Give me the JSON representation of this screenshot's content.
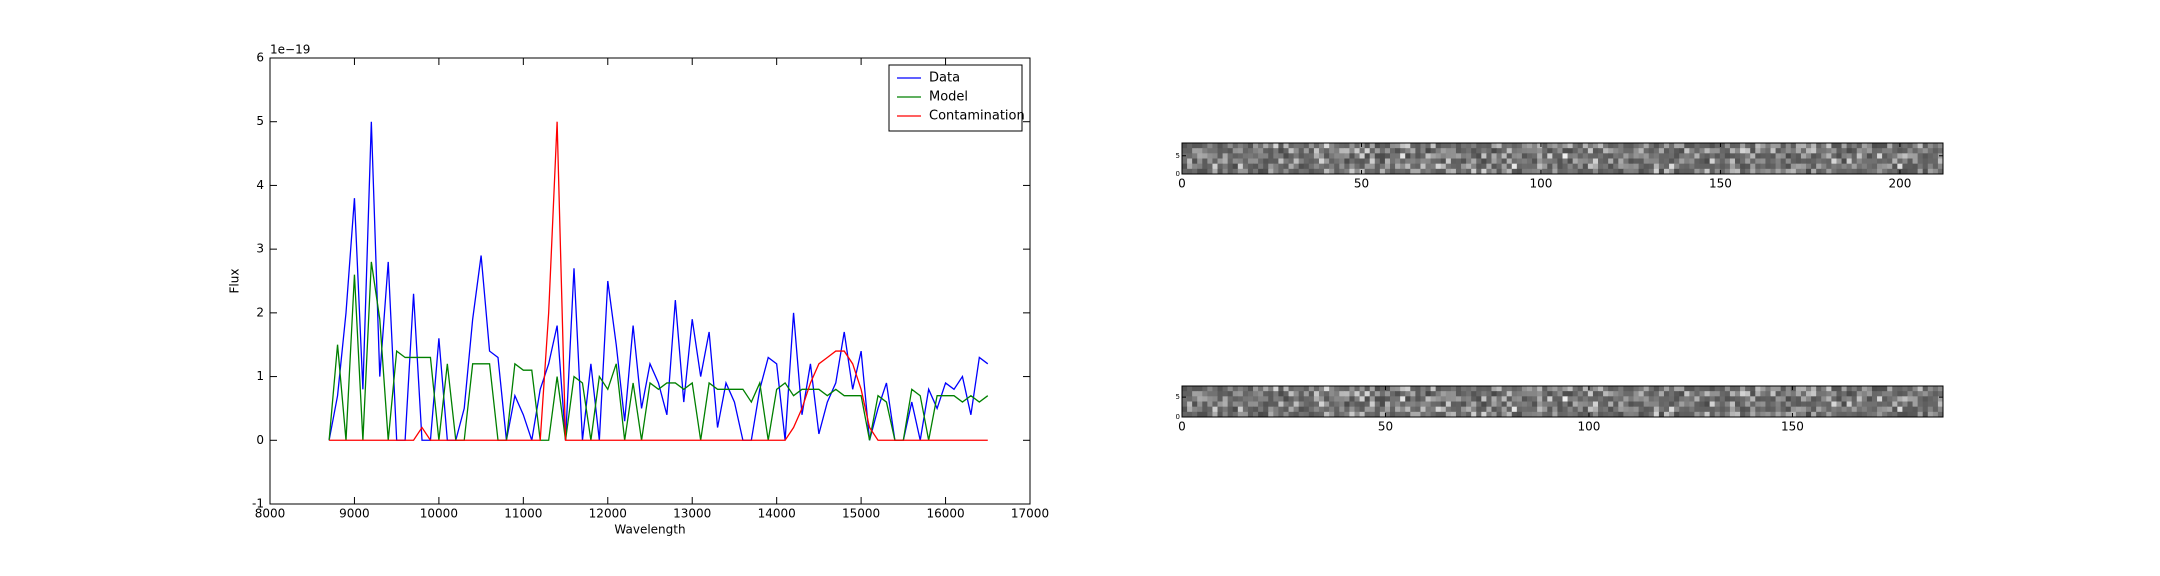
{
  "chart_data": [
    {
      "type": "line",
      "x_label": "Wavelength",
      "y_label": "Flux",
      "offset_text": "1e−19",
      "x": [
        8700,
        8800,
        8900,
        9000,
        9100,
        9200,
        9300,
        9400,
        9500,
        9600,
        9700,
        9800,
        9900,
        10000,
        10100,
        10200,
        10300,
        10400,
        10500,
        10600,
        10700,
        10800,
        10900,
        11000,
        11100,
        11200,
        11300,
        11400,
        11500,
        11600,
        11700,
        11800,
        11900,
        12000,
        12100,
        12200,
        12300,
        12400,
        12500,
        12600,
        12700,
        12800,
        12900,
        13000,
        13100,
        13200,
        13300,
        13400,
        13500,
        13600,
        13700,
        13800,
        13900,
        14000,
        14100,
        14200,
        14300,
        14400,
        14500,
        14600,
        14700,
        14800,
        14900,
        15000,
        15100,
        15200,
        15300,
        15400,
        15500,
        15600,
        15700,
        15800,
        15900,
        16000,
        16100,
        16200,
        16300,
        16400,
        16500
      ],
      "series": [
        {
          "name": "Data",
          "color": "#0000ff",
          "values": [
            0,
            0.7,
            2.0,
            3.8,
            0.8,
            5.0,
            1.0,
            2.8,
            0,
            0,
            2.3,
            0,
            0,
            1.6,
            0,
            0,
            0.5,
            1.9,
            2.9,
            1.4,
            1.3,
            0,
            0.7,
            0.4,
            0,
            0.8,
            1.2,
            1.8,
            0,
            2.7,
            0,
            1.2,
            0,
            2.5,
            1.5,
            0.3,
            1.8,
            0.5,
            1.2,
            0.9,
            0.4,
            2.2,
            0.6,
            1.9,
            1.0,
            1.7,
            0.2,
            0.9,
            0.6,
            0,
            0,
            0.8,
            1.3,
            1.2,
            0,
            2.0,
            0.4,
            1.2,
            0.1,
            0.6,
            0.9,
            1.7,
            0.8,
            1.4,
            0,
            0.5,
            0.9,
            0,
            0,
            0.6,
            0,
            0.8,
            0.5,
            0.9,
            0.8,
            1.0,
            0.4,
            1.3,
            1.2
          ]
        },
        {
          "name": "Model",
          "color": "#008000",
          "values": [
            0,
            1.5,
            0,
            2.6,
            0,
            2.8,
            1.9,
            0,
            1.4,
            1.3,
            1.3,
            1.3,
            1.3,
            0,
            1.2,
            0,
            0,
            1.2,
            1.2,
            1.2,
            0,
            0,
            1.2,
            1.1,
            1.1,
            0,
            0,
            1.0,
            0,
            1.0,
            0.9,
            0,
            1.0,
            0.8,
            1.2,
            0,
            0.9,
            0,
            0.9,
            0.8,
            0.9,
            0.9,
            0.8,
            0.9,
            0,
            0.9,
            0.8,
            0.8,
            0.8,
            0.8,
            0.6,
            0.9,
            0,
            0.8,
            0.9,
            0.7,
            0.8,
            0.8,
            0.8,
            0.7,
            0.8,
            0.7,
            0.7,
            0.7,
            0,
            0.7,
            0.6,
            0,
            0,
            0.8,
            0.7,
            0,
            0.7,
            0.7,
            0.7,
            0.6,
            0.7,
            0.6,
            0.7
          ]
        },
        {
          "name": "Contamination",
          "color": "#ff0000",
          "values": [
            0,
            0,
            0,
            0,
            0,
            0,
            0,
            0,
            0,
            0,
            0,
            0.2,
            0,
            0,
            0,
            0,
            0,
            0,
            0,
            0,
            0,
            0,
            0,
            0,
            0,
            0,
            2.0,
            5.0,
            0,
            0,
            0,
            0,
            0,
            0,
            0,
            0,
            0,
            0,
            0,
            0,
            0,
            0,
            0,
            0,
            0,
            0,
            0,
            0,
            0,
            0,
            0,
            0,
            0,
            0,
            0,
            0.2,
            0.5,
            0.9,
            1.2,
            1.3,
            1.4,
            1.4,
            1.2,
            0.8,
            0.2,
            0,
            0,
            0,
            0,
            0,
            0,
            0,
            0,
            0,
            0,
            0,
            0,
            0,
            0
          ]
        }
      ],
      "xlim": [
        8000,
        17000
      ],
      "xticks": [
        8000,
        9000,
        10000,
        11000,
        12000,
        13000,
        14000,
        15000,
        16000,
        17000
      ],
      "ylim": [
        -1,
        6
      ],
      "yticks": [
        -1,
        0,
        1,
        2,
        3,
        4,
        5,
        6
      ],
      "legend": "upper right"
    },
    {
      "type": "image",
      "xlim": [
        0,
        212
      ],
      "xticks": [
        0,
        50,
        100,
        150,
        200
      ],
      "ylim": [
        0,
        8.5
      ],
      "yticks": [
        0,
        5
      ]
    },
    {
      "type": "image",
      "xlim": [
        0,
        187
      ],
      "xticks": [
        0,
        50,
        100,
        150
      ],
      "ylim": [
        0,
        7.8
      ],
      "yticks": [
        0,
        5
      ]
    }
  ]
}
